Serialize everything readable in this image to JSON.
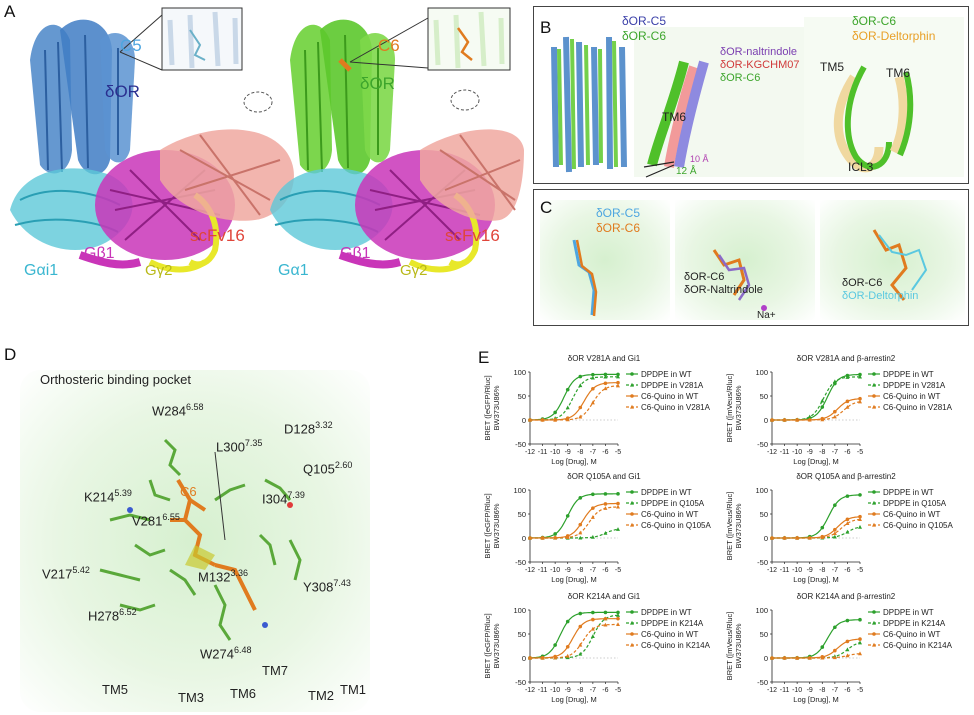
{
  "panels": {
    "A": {
      "letter": "A",
      "left": {
        "ligand": "C5",
        "receptor": "δOR",
        "galpha": "Gαi1",
        "gbeta": "Gβ1",
        "ggamma": "Gγ2",
        "scfv": "scFv16"
      },
      "right": {
        "ligand": "C6",
        "receptor": "δOR",
        "galpha": "Gα1",
        "gbeta": "Gβ1",
        "ggamma": "Gγ2",
        "scfv": "scFv16"
      }
    },
    "B": {
      "letter": "B",
      "legend1": [
        "δOR-C5",
        "δOR-C6"
      ],
      "legend2": [
        "δOR-naltrindole",
        "δOR-KGCHM07",
        "δOR-C6"
      ],
      "tm6": "TM6",
      "dist1": "10 Å",
      "dist2": "12 Å",
      "legend3": [
        "δOR-C6",
        "δOR-Deltorphin"
      ],
      "tm5": "TM5",
      "tm6b": "TM6",
      "icl3": "ICL3"
    },
    "C": {
      "letter": "C",
      "legend1": [
        "δOR-C5",
        "δOR-C6"
      ],
      "legend2": [
        "δOR-C6",
        "δOR-Naltrindole"
      ],
      "na": "Na+",
      "legend3": [
        "δOR-C6",
        "δOR-Deltorphin"
      ]
    },
    "D": {
      "letter": "D",
      "title": "Orthosteric binding pocket",
      "ligand": "C6",
      "residues": [
        {
          "name": "W284",
          "sup": "6.58"
        },
        {
          "name": "L300",
          "sup": "7.35"
        },
        {
          "name": "D128",
          "sup": "3.32"
        },
        {
          "name": "K214",
          "sup": "5.39"
        },
        {
          "name": "V281",
          "sup": "6.55"
        },
        {
          "name": "Q105",
          "sup": "2.60"
        },
        {
          "name": "I304",
          "sup": "7.39"
        },
        {
          "name": "V217",
          "sup": "5.42"
        },
        {
          "name": "M132",
          "sup": "3.36"
        },
        {
          "name": "Y308",
          "sup": "7.43"
        },
        {
          "name": "H278",
          "sup": "6.52"
        },
        {
          "name": "W274",
          "sup": "6.48"
        }
      ],
      "helices": [
        "TM7",
        "TM5",
        "TM3",
        "TM6",
        "TM2",
        "TM1"
      ]
    },
    "E": {
      "letter": "E"
    }
  },
  "chart_data": [
    {
      "type": "line",
      "title": "δOR V281A and Gi1",
      "xlabel": "Log [Drug], M",
      "ylabel": "BRET ([eGFP/Rluc] BW373U86%",
      "xticks": [
        -12,
        -11,
        -10,
        -9,
        -8,
        -7,
        -6,
        -5
      ],
      "yticks": [
        -50,
        0,
        50,
        100
      ],
      "xlim": [
        -12,
        -5
      ],
      "ylim": [
        -50,
        100
      ],
      "series": [
        {
          "name": "DPDPE in WT",
          "color": "#2ca02c",
          "dash": false,
          "marker": "circle",
          "ec50": -9.3,
          "top": 95
        },
        {
          "name": "DPDPE in V281A",
          "color": "#2ca02c",
          "dash": true,
          "marker": "triangle",
          "ec50": -8.6,
          "top": 90
        },
        {
          "name": "C6-Quino in WT",
          "color": "#e07b1f",
          "dash": false,
          "marker": "circle",
          "ec50": -7.7,
          "top": 78
        },
        {
          "name": "C6-Quino in V281A",
          "color": "#e07b1f",
          "dash": true,
          "marker": "triangle",
          "ec50": -7.0,
          "top": 72
        }
      ]
    },
    {
      "type": "line",
      "title": "δOR V281A and β-arrestin2",
      "xlabel": "Log [Drug], M",
      "ylabel": "BRET ([mVeus/Rluc] BW373U86%",
      "xticks": [
        -12,
        -11,
        -10,
        -9,
        -8,
        -7,
        -6,
        -5
      ],
      "yticks": [
        -50,
        0,
        50,
        100
      ],
      "xlim": [
        -12,
        -5
      ],
      "ylim": [
        -50,
        100
      ],
      "series": [
        {
          "name": "DPDPE in WT",
          "color": "#2ca02c",
          "dash": false,
          "marker": "circle",
          "ec50": -7.6,
          "top": 95
        },
        {
          "name": "DPDPE in V281A",
          "color": "#2ca02c",
          "dash": true,
          "marker": "triangle",
          "ec50": -7.9,
          "top": 90
        },
        {
          "name": "C6-Quino in WT",
          "color": "#e07b1f",
          "dash": false,
          "marker": "circle",
          "ec50": -6.8,
          "top": 45
        },
        {
          "name": "C6-Quino in V281A",
          "color": "#e07b1f",
          "dash": true,
          "marker": "triangle",
          "ec50": -6.3,
          "top": 40
        }
      ]
    },
    {
      "type": "line",
      "title": "δOR Q105A and Gi1",
      "xlabel": "Log [Drug], M",
      "ylabel": "BRET ([eGFP/Rluc] BW373U86%",
      "xticks": [
        -12,
        -11,
        -10,
        -9,
        -8,
        -7,
        -6,
        -5
      ],
      "yticks": [
        -50,
        0,
        50,
        100
      ],
      "xlim": [
        -12,
        -5
      ],
      "ylim": [
        -50,
        100
      ],
      "series": [
        {
          "name": "DPDPE in WT",
          "color": "#2ca02c",
          "dash": false,
          "marker": "circle",
          "ec50": -9.0,
          "top": 92
        },
        {
          "name": "DPDPE in Q105A",
          "color": "#2ca02c",
          "dash": true,
          "marker": "triangle",
          "ec50": -6.0,
          "top": 20
        },
        {
          "name": "C6-Quino in WT",
          "color": "#e07b1f",
          "dash": false,
          "marker": "circle",
          "ec50": -7.8,
          "top": 72
        },
        {
          "name": "C6-Quino in Q105A",
          "color": "#e07b1f",
          "dash": true,
          "marker": "triangle",
          "ec50": -7.3,
          "top": 65
        }
      ]
    },
    {
      "type": "line",
      "title": "δOR Q105A and β-arrestin2",
      "xlabel": "Log [Drug], M",
      "ylabel": "BRET ([mVeus/Rluc] BW373U86%",
      "xticks": [
        -12,
        -11,
        -10,
        -9,
        -8,
        -7,
        -6,
        -5
      ],
      "yticks": [
        -50,
        0,
        50,
        100
      ],
      "xlim": [
        -12,
        -5
      ],
      "ylim": [
        -50,
        100
      ],
      "series": [
        {
          "name": "DPDPE in WT",
          "color": "#2ca02c",
          "dash": false,
          "marker": "circle",
          "ec50": -7.5,
          "top": 90
        },
        {
          "name": "DPDPE in Q105A",
          "color": "#2ca02c",
          "dash": true,
          "marker": "triangle",
          "ec50": -6.0,
          "top": 25
        },
        {
          "name": "C6-Quino in WT",
          "color": "#e07b1f",
          "dash": false,
          "marker": "circle",
          "ec50": -6.8,
          "top": 45
        },
        {
          "name": "C6-Quino in Q105A",
          "color": "#e07b1f",
          "dash": true,
          "marker": "triangle",
          "ec50": -6.5,
          "top": 40
        }
      ]
    },
    {
      "type": "line",
      "title": "δOR K214A and Gi1",
      "xlabel": "Log [Drug], M",
      "ylabel": "BRET ([eGFP/Rluc] BW373U86%",
      "xticks": [
        -12,
        -11,
        -10,
        -9,
        -8,
        -7,
        -6,
        -5
      ],
      "yticks": [
        -50,
        0,
        50,
        100
      ],
      "xlim": [
        -12,
        -5
      ],
      "ylim": [
        -50,
        100
      ],
      "series": [
        {
          "name": "DPDPE in WT",
          "color": "#2ca02c",
          "dash": false,
          "marker": "circle",
          "ec50": -9.6,
          "top": 95
        },
        {
          "name": "DPDPE in K214A",
          "color": "#2ca02c",
          "dash": true,
          "marker": "triangle",
          "ec50": -7.0,
          "top": 90
        },
        {
          "name": "C6-Quino in WT",
          "color": "#e07b1f",
          "dash": false,
          "marker": "circle",
          "ec50": -8.6,
          "top": 82
        },
        {
          "name": "C6-Quino in K214A",
          "color": "#e07b1f",
          "dash": true,
          "marker": "triangle",
          "ec50": -7.8,
          "top": 70
        }
      ]
    },
    {
      "type": "line",
      "title": "δOR K214A and β-arrestin2",
      "xlabel": "Log [Drug], M",
      "ylabel": "BRET ([mVeus/Rluc] BW373U86%",
      "xticks": [
        -12,
        -11,
        -10,
        -9,
        -8,
        -7,
        -6,
        -5
      ],
      "yticks": [
        -50,
        0,
        50,
        100
      ],
      "xlim": [
        -12,
        -5
      ],
      "ylim": [
        -50,
        100
      ],
      "series": [
        {
          "name": "DPDPE in WT",
          "color": "#2ca02c",
          "dash": false,
          "marker": "circle",
          "ec50": -7.6,
          "top": 80
        },
        {
          "name": "DPDPE in K214A",
          "color": "#2ca02c",
          "dash": true,
          "marker": "triangle",
          "ec50": -6.0,
          "top": 35
        },
        {
          "name": "C6-Quino in WT",
          "color": "#e07b1f",
          "dash": false,
          "marker": "circle",
          "ec50": -6.8,
          "top": 40
        },
        {
          "name": "C6-Quino in K214A",
          "color": "#e07b1f",
          "dash": true,
          "marker": "triangle",
          "ec50": -6.0,
          "top": 10
        }
      ]
    }
  ]
}
